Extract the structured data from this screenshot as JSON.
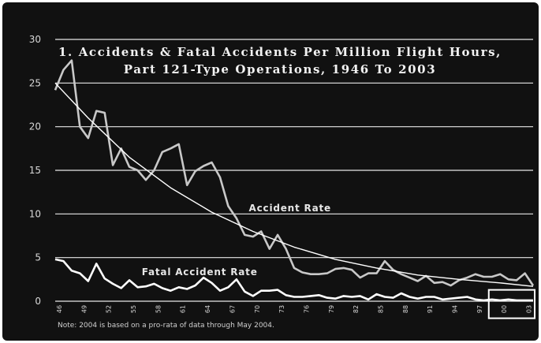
{
  "chart_data": {
    "type": "line",
    "title_line1": "1. Accidents & Fatal Accidents Per Million Flight Hours,",
    "title_line2": "Part 121-Type Operations, 1946 To 2003",
    "xlabel": "",
    "ylabel": "",
    "ylim": [
      0,
      30
    ],
    "yticks": [
      0,
      5,
      10,
      15,
      20,
      25,
      30
    ],
    "xlim": [
      1946,
      2004
    ],
    "xticks": [
      {
        "year": 1946,
        "label": "46"
      },
      {
        "year": 1949,
        "label": "49"
      },
      {
        "year": 1952,
        "label": "52"
      },
      {
        "year": 1955,
        "label": "55"
      },
      {
        "year": 1958,
        "label": "58"
      },
      {
        "year": 1961,
        "label": "61"
      },
      {
        "year": 1964,
        "label": "64"
      },
      {
        "year": 1967,
        "label": "67"
      },
      {
        "year": 1970,
        "label": "70"
      },
      {
        "year": 1973,
        "label": "73"
      },
      {
        "year": 1976,
        "label": "76"
      },
      {
        "year": 1979,
        "label": "79"
      },
      {
        "year": 1982,
        "label": "82"
      },
      {
        "year": 1985,
        "label": "85"
      },
      {
        "year": 1988,
        "label": "88"
      },
      {
        "year": 1991,
        "label": "91"
      },
      {
        "year": 1994,
        "label": "94"
      },
      {
        "year": 1997,
        "label": "97"
      },
      {
        "year": 2000,
        "label": "00"
      },
      {
        "year": 2003,
        "label": "03"
      }
    ],
    "grid": "horizontal",
    "note": "Note: 2004 is based on a pro-rata of data through May 2004.",
    "highlight_box_years": [
      1999,
      2004
    ],
    "series": [
      {
        "name": "Accident Rate",
        "color": "#c8c8c8",
        "x": [
          1946,
          1947,
          1948,
          1949,
          1950,
          1951,
          1952,
          1953,
          1954,
          1955,
          1956,
          1957,
          1958,
          1959,
          1960,
          1961,
          1962,
          1963,
          1964,
          1965,
          1966,
          1967,
          1968,
          1969,
          1970,
          1971,
          1972,
          1973,
          1974,
          1975,
          1976,
          1977,
          1978,
          1979,
          1980,
          1981,
          1982,
          1983,
          1984,
          1985,
          1986,
          1987,
          1988,
          1989,
          1990,
          1991,
          1992,
          1993,
          1994,
          1995,
          1996,
          1997,
          1998,
          1999,
          2000,
          2001,
          2002,
          2003,
          2004
        ],
        "y": [
          24.2,
          26.5,
          27.6,
          20.0,
          18.7,
          21.8,
          21.6,
          15.6,
          17.5,
          15.4,
          15.0,
          13.9,
          15.0,
          17.1,
          17.5,
          18.0,
          13.3,
          14.9,
          15.5,
          15.9,
          14.2,
          10.9,
          9.5,
          7.6,
          7.4,
          8.0,
          6.0,
          7.6,
          6.0,
          3.8,
          3.3,
          3.1,
          3.1,
          3.2,
          3.7,
          3.8,
          3.6,
          2.7,
          3.2,
          3.2,
          4.6,
          3.6,
          3.1,
          2.7,
          2.3,
          2.9,
          2.1,
          2.2,
          1.8,
          2.4,
          2.7,
          3.1,
          2.8,
          2.8,
          3.1,
          2.5,
          2.4,
          3.2,
          1.8
        ]
      },
      {
        "name": "Fatal Accident Rate",
        "color": "#ffffff",
        "x": [
          1946,
          1947,
          1948,
          1949,
          1950,
          1951,
          1952,
          1953,
          1954,
          1955,
          1956,
          1957,
          1958,
          1959,
          1960,
          1961,
          1962,
          1963,
          1964,
          1965,
          1966,
          1967,
          1968,
          1969,
          1970,
          1971,
          1972,
          1973,
          1974,
          1975,
          1976,
          1977,
          1978,
          1979,
          1980,
          1981,
          1982,
          1983,
          1984,
          1985,
          1986,
          1987,
          1988,
          1989,
          1990,
          1991,
          1992,
          1993,
          1994,
          1995,
          1996,
          1997,
          1998,
          1999,
          2000,
          2001,
          2002,
          2003,
          2004
        ],
        "y": [
          4.8,
          4.6,
          3.5,
          3.2,
          2.3,
          4.3,
          2.6,
          2.0,
          1.5,
          2.4,
          1.6,
          1.7,
          2.0,
          1.5,
          1.2,
          1.6,
          1.4,
          1.8,
          2.7,
          2.1,
          1.2,
          1.6,
          2.5,
          1.1,
          0.6,
          1.2,
          1.2,
          1.3,
          0.7,
          0.5,
          0.5,
          0.6,
          0.7,
          0.4,
          0.3,
          0.6,
          0.5,
          0.6,
          0.2,
          0.8,
          0.5,
          0.4,
          0.9,
          0.5,
          0.3,
          0.5,
          0.5,
          0.2,
          0.3,
          0.4,
          0.5,
          0.2,
          0.1,
          0.2,
          0.1,
          0.2,
          0.1,
          0.1,
          0.1
        ]
      },
      {
        "name": "",
        "color": "#ffffff",
        "kind": "trend",
        "x": [
          1946,
          1950,
          1955,
          1960,
          1965,
          1970,
          1975,
          1980,
          1985,
          1990,
          1995,
          2000,
          2004
        ],
        "y": [
          25.0,
          21.0,
          16.5,
          13.0,
          10.2,
          8.0,
          6.2,
          4.8,
          3.8,
          3.0,
          2.5,
          2.1,
          1.7
        ]
      }
    ],
    "series_labels": [
      {
        "text": "Accident Rate",
        "at": [
          1969.5,
          10.3
        ]
      },
      {
        "text": "Fatal Accident Rate",
        "at": [
          1956.5,
          3.0
        ]
      }
    ]
  }
}
